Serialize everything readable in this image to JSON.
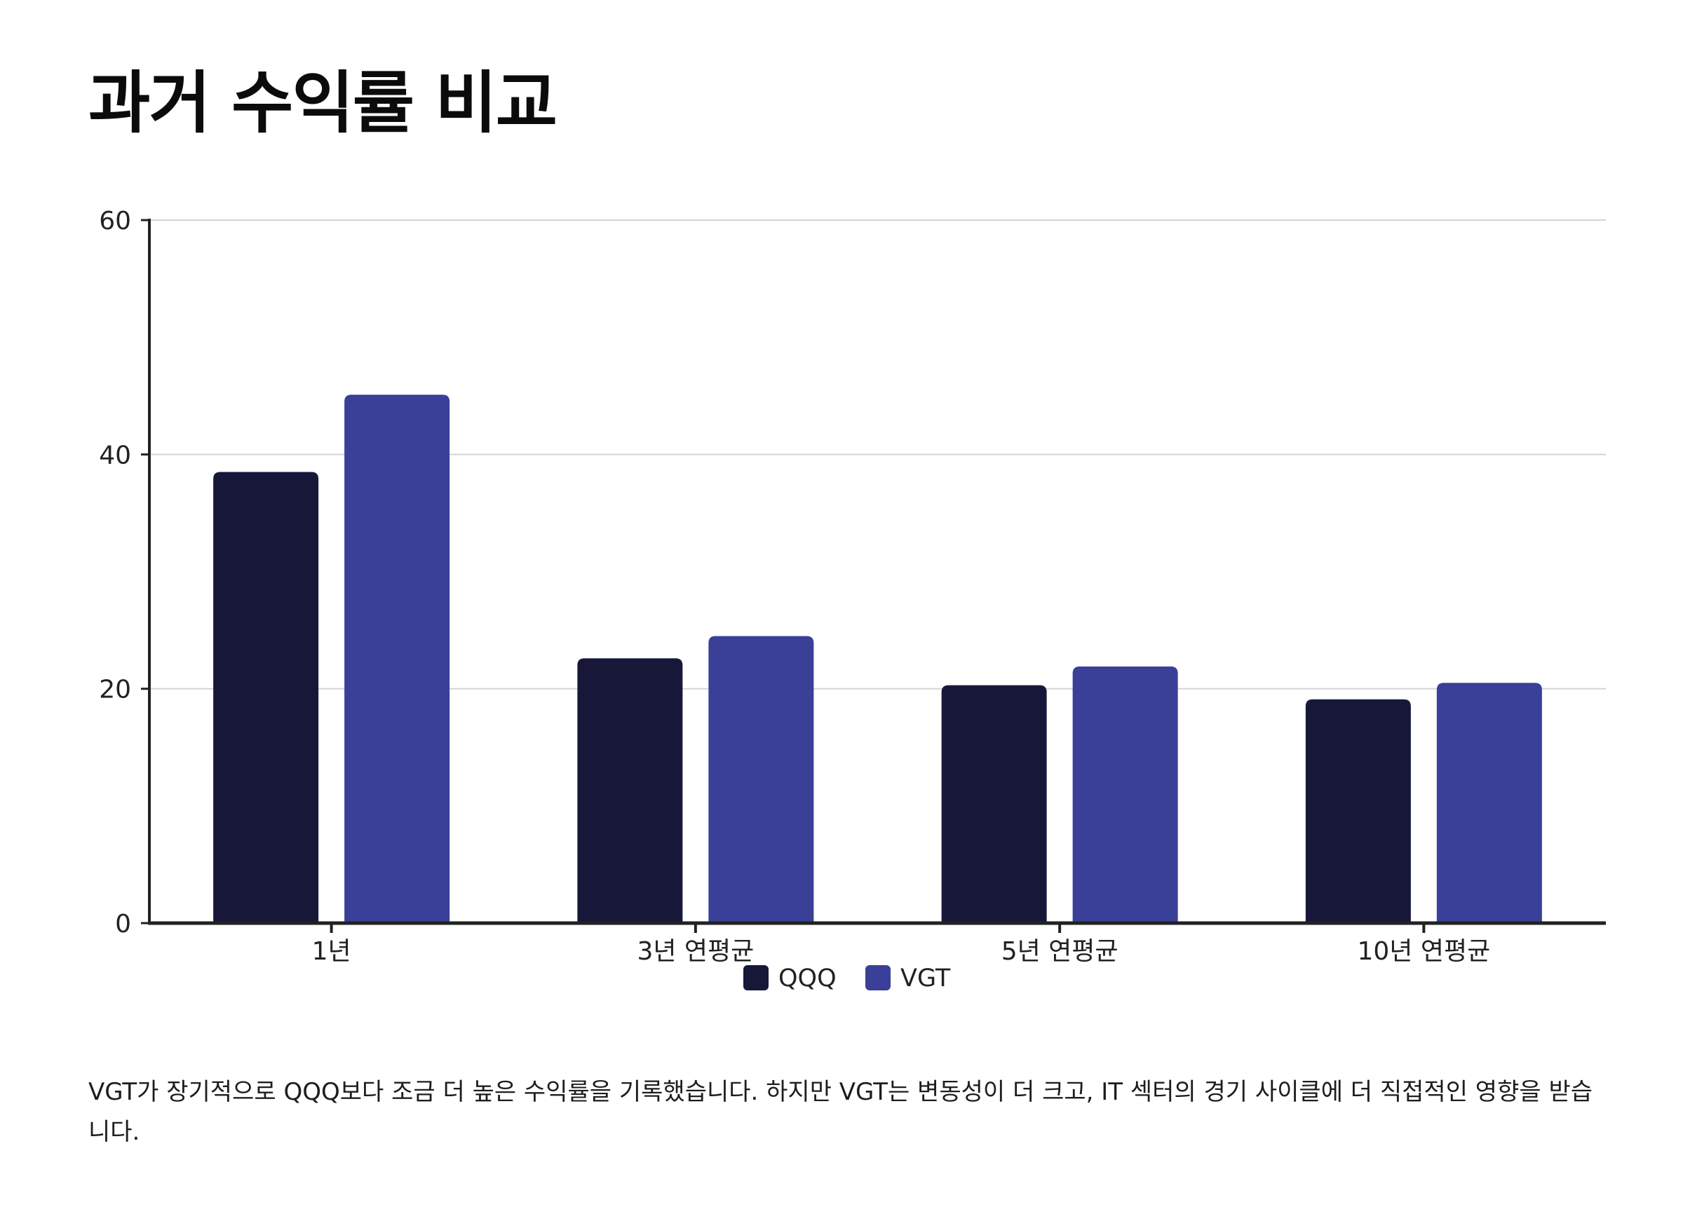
{
  "page": {
    "title": "과거 수익률 비교",
    "note": "VGT가 장기적으로 QQQ보다 조금 더 높은 수익률을 기록했습니다. 하지만 VGT는 변동성이 더 크고, IT 섹터의 경기 사이클에 더 직접적인 영향을 받습니다."
  },
  "chart_data": {
    "type": "bar",
    "categories": [
      "1년",
      "3년 연평균",
      "5년 연평균",
      "10년 연평균"
    ],
    "series": [
      {
        "name": "QQQ",
        "color": "#171839",
        "values": [
          38.5,
          22.6,
          20.3,
          19.1
        ]
      },
      {
        "name": "VGT",
        "color": "#3a3f98",
        "values": [
          45.1,
          24.5,
          21.9,
          20.5
        ]
      }
    ],
    "ylim": [
      0,
      60
    ],
    "yticks": [
      0,
      20,
      40,
      60
    ],
    "grid": true,
    "legend": "bottom-center",
    "title": "",
    "xlabel": "",
    "ylabel": ""
  }
}
